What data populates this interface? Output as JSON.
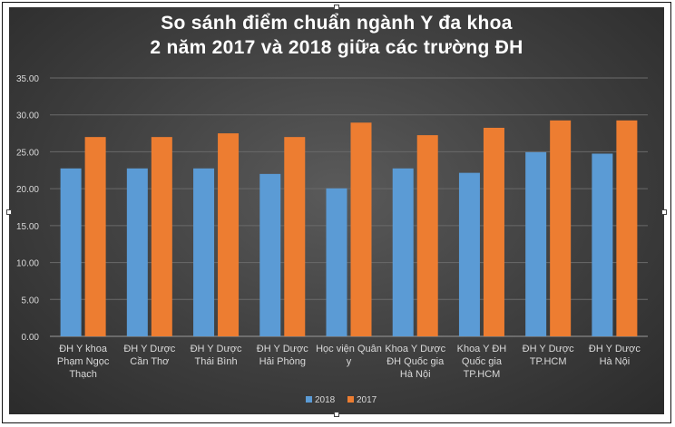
{
  "chart_data": {
    "type": "bar",
    "title_line1": "So sánh điểm chuẩn ngành Y đa khoa",
    "title_line2": "2 năm 2017 và 2018 giữa các trường ĐH",
    "categories": [
      [
        "ĐH Y khoa",
        "Phạm Ngọc",
        "Thạch"
      ],
      [
        "ĐH Y Dược",
        "Cần Thơ"
      ],
      [
        "ĐH Y Dược",
        "Thái Bình"
      ],
      [
        "ĐH Y Dược",
        "Hải Phòng"
      ],
      [
        "Học viện Quân",
        "y"
      ],
      [
        "Khoa Y Dược",
        "ĐH Quốc gia",
        "Hà Nội"
      ],
      [
        "Khoa Y ĐH",
        "Quốc gia",
        "TP.HCM"
      ],
      [
        "ĐH Y Dược",
        "TP.HCM"
      ],
      [
        "ĐH Y Dược",
        "Hà Nội"
      ]
    ],
    "series": [
      {
        "name": "2018",
        "color": "#5b9bd5",
        "values": [
          22.75,
          22.75,
          22.75,
          22.0,
          20.05,
          22.75,
          22.15,
          24.95,
          24.75
        ]
      },
      {
        "name": "2017",
        "color": "#ed7d31",
        "values": [
          27.0,
          27.0,
          27.5,
          27.0,
          28.95,
          27.25,
          28.25,
          29.25,
          29.25
        ]
      }
    ],
    "ylim": [
      0,
      35
    ],
    "yticks": [
      "0.00",
      "5.00",
      "10.00",
      "15.00",
      "20.00",
      "25.00",
      "30.00",
      "35.00"
    ],
    "grid": true,
    "legend_position": "bottom"
  }
}
